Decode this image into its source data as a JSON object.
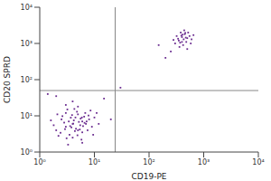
{
  "chart_data": {
    "type": "scatter",
    "x_label": "CD19-PE",
    "y_label": "CD20 SPRD",
    "log": true,
    "grid": false,
    "color": "#6b2d90",
    "xlim": [
      1,
      10000
    ],
    "ylim": [
      1,
      10000
    ],
    "xticks": [
      {
        "value": 1,
        "label": "10⁰"
      },
      {
        "value": 10,
        "label": "10¹"
      },
      {
        "value": 100,
        "label": "10²"
      },
      {
        "value": 1000,
        "label": "10³"
      },
      {
        "value": 10000,
        "label": "10⁴"
      }
    ],
    "yticks": [
      {
        "value": 1,
        "label": "10⁰"
      },
      {
        "value": 10,
        "label": "10¹"
      },
      {
        "value": 100,
        "label": "10²"
      },
      {
        "value": 1000,
        "label": "10³"
      },
      {
        "value": 10000,
        "label": "10⁴"
      }
    ],
    "quadrant_x": 24,
    "quadrant_y": 50,
    "x": [
      3,
      4,
      5,
      2.5,
      6,
      3.5,
      4.5,
      5.5,
      2,
      7,
      3,
      4,
      6,
      8,
      2.8,
      5,
      3.8,
      4.2,
      6.5,
      2.2,
      9,
      3.2,
      5.8,
      4.8,
      7.5,
      2.6,
      3.6,
      5.2,
      4.4,
      6.8,
      1.8,
      10,
      3.4,
      4.6,
      5.6,
      2.4,
      7.2,
      3.9,
      4.9,
      6.2,
      12,
      3,
      5,
      8.5,
      2.1,
      4,
      6,
      3.3,
      9.5,
      1.6,
      5.4,
      4.1,
      3.7,
      6.6,
      2.9,
      7.8,
      4.3,
      5.9,
      3.1,
      11,
      15,
      20,
      1.4,
      30,
      2,
      400,
      350,
      450,
      500,
      300,
      420,
      380,
      550,
      480,
      320,
      600,
      440,
      360,
      520,
      400,
      470,
      340,
      410,
      580,
      280,
      500,
      430,
      390,
      460,
      370,
      650,
      250,
      200,
      150
    ],
    "values": [
      5,
      6,
      4,
      8,
      7,
      3,
      9,
      5.5,
      4,
      6,
      12,
      2.5,
      3.5,
      8,
      6.5,
      11,
      4.8,
      7.5,
      9.5,
      2.8,
      5,
      15,
      2.2,
      13,
      4,
      9.8,
      5.2,
      6.8,
      3.8,
      12,
      5.5,
      9,
      7,
      4.4,
      8.4,
      3.4,
      7,
      10.5,
      2.9,
      5.2,
      6,
      20,
      18,
      14,
      11,
      25,
      1.8,
      1.6,
      3,
      7.5,
      4.2,
      6.1,
      8.9,
      6.4,
      4.3,
      10.2,
      15.5,
      9,
      2.4,
      12,
      30,
      8,
      40,
      60,
      35,
      1500,
      1200,
      1800,
      1400,
      1000,
      900,
      2000,
      1600,
      1100,
      1600,
      1300,
      2300,
      800,
      2000,
      1100,
      1450,
      1350,
      1750,
      1000,
      1250,
      700,
      1300,
      1650,
      1950,
      1050,
      1700,
      600,
      400,
      900
    ]
  }
}
